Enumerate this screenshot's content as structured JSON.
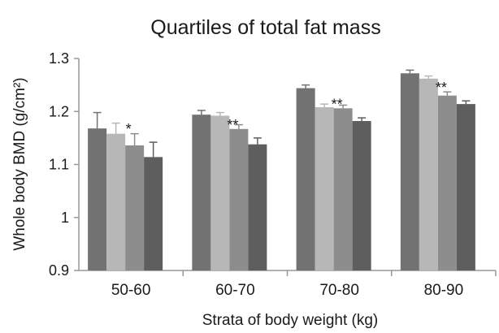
{
  "chart_data": {
    "type": "bar",
    "title": "Quartiles of total fat mass",
    "xlabel": "Strata of body weight (kg)",
    "ylabel": "Whole body BMD (g/cm²)",
    "ylim": [
      0.9,
      1.3
    ],
    "yticks": [
      "0.9",
      "1",
      "1.1",
      "1.2",
      "1.3"
    ],
    "categories": [
      "50-60",
      "60-70",
      "70-80",
      "80-90"
    ],
    "series": [
      {
        "values": [
          1.168,
          1.194,
          1.244,
          1.272
        ],
        "errors": [
          0.03,
          0.008,
          0.006,
          0.006
        ],
        "color": "#727272"
      },
      {
        "values": [
          1.158,
          1.192,
          1.208,
          1.262
        ],
        "errors": [
          0.02,
          0.006,
          0.006,
          0.005
        ],
        "color": "#b7b7b7"
      },
      {
        "values": [
          1.136,
          1.167,
          1.206,
          1.23
        ],
        "errors": [
          0.022,
          0.008,
          0.006,
          0.007
        ],
        "color": "#8d8d8d"
      },
      {
        "values": [
          1.114,
          1.138,
          1.182,
          1.214
        ],
        "errors": [
          0.028,
          0.012,
          0.006,
          0.006
        ],
        "color": "#5e5e5e"
      }
    ],
    "annotations": [
      "*",
      "**",
      "**",
      "**"
    ],
    "grid": false,
    "legend": "none"
  }
}
